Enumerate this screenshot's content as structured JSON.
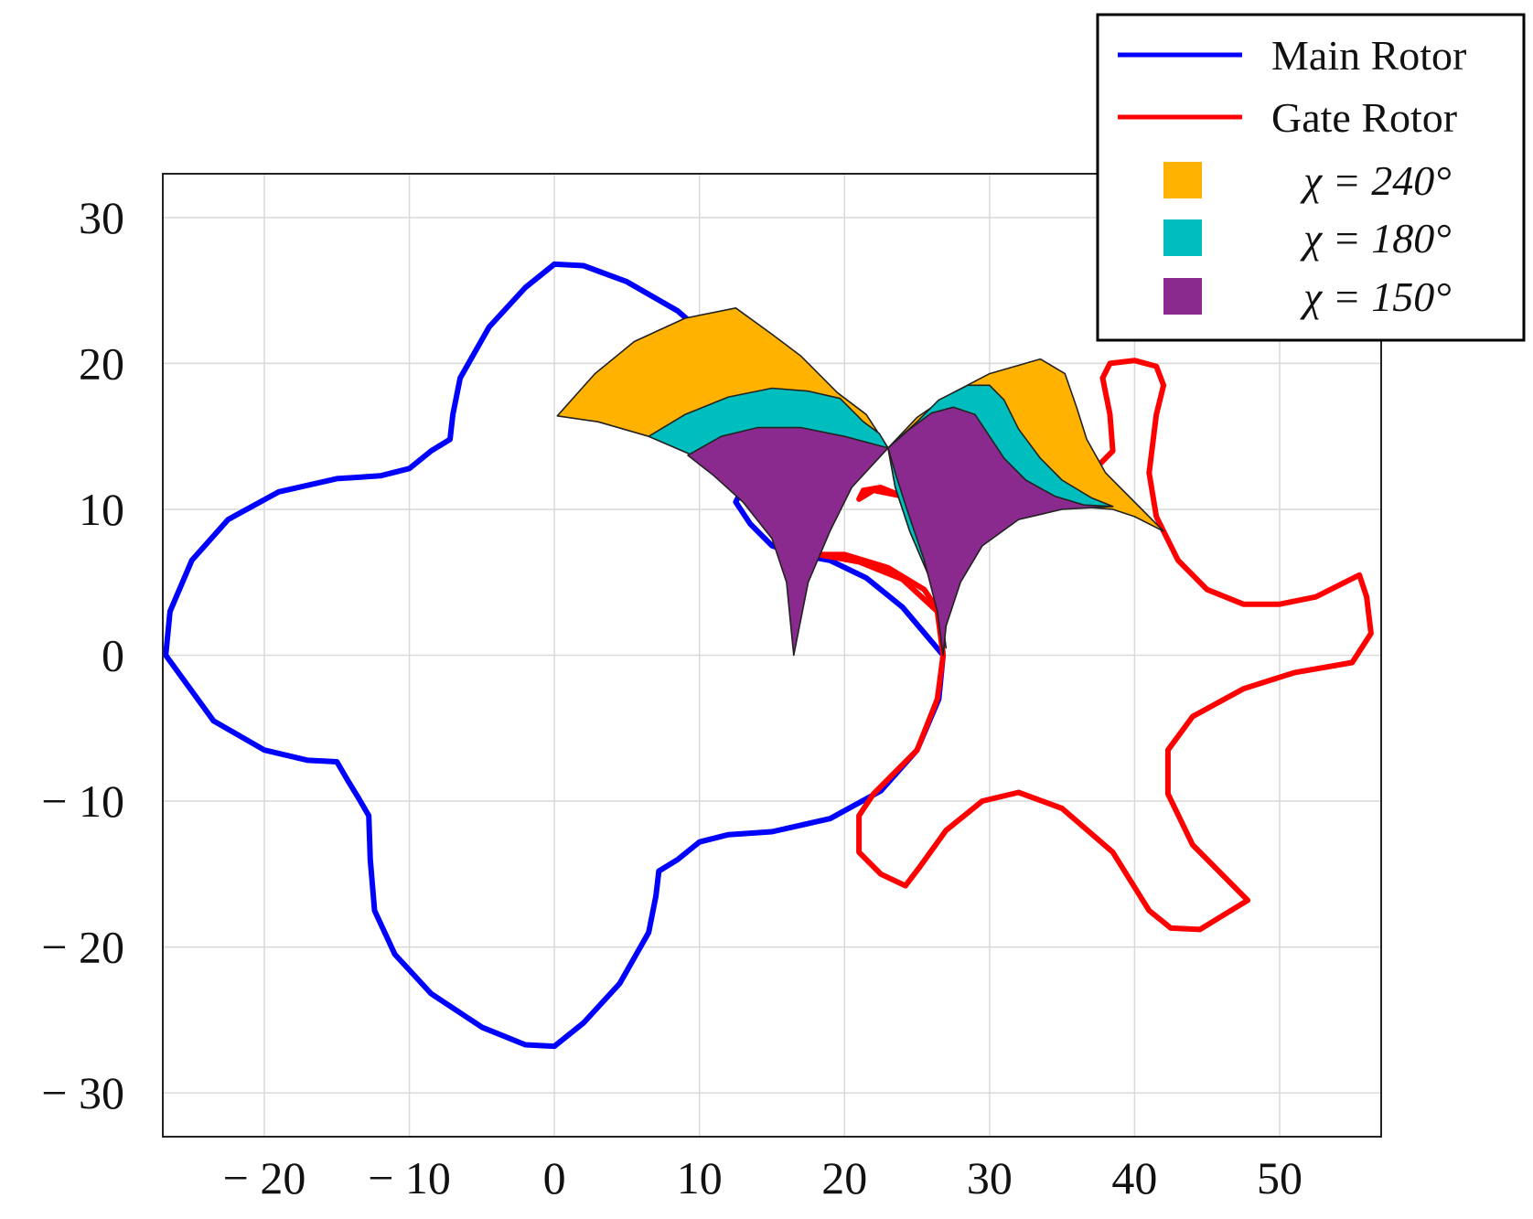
{
  "chart_data": {
    "type": "line",
    "title": "",
    "xlabel": "",
    "ylabel": "",
    "xlim": [
      -27,
      57
    ],
    "ylim": [
      -33,
      33
    ],
    "grid": true,
    "legend_position": "top-right",
    "x_ticks": [
      -20,
      -10,
      0,
      10,
      20,
      30,
      40,
      50
    ],
    "y_ticks": [
      -30,
      -20,
      -10,
      0,
      10,
      20,
      30
    ],
    "x_tick_labels": [
      "− 20",
      "− 10",
      "0",
      "10",
      "20",
      "30",
      "40",
      "50"
    ],
    "y_tick_labels": [
      "− 30",
      "− 20",
      "− 10",
      "0",
      "10",
      "20",
      "30"
    ],
    "series": [
      {
        "name": "Main Rotor",
        "color": "#0000ff",
        "points": [
          [
            -26.8,
            0
          ],
          [
            -26.5,
            3
          ],
          [
            -25,
            6.5
          ],
          [
            -22.5,
            9.3
          ],
          [
            -19,
            11.2
          ],
          [
            -15,
            12.1
          ],
          [
            -12,
            12.3
          ],
          [
            -10,
            12.8
          ],
          [
            -8.5,
            14
          ],
          [
            -7.2,
            14.8
          ],
          [
            -7,
            16.5
          ],
          [
            -6.5,
            19
          ],
          [
            -4.5,
            22.5
          ],
          [
            -2,
            25.2
          ],
          [
            0,
            26.8
          ],
          [
            2,
            26.7
          ],
          [
            5,
            25.6
          ],
          [
            8.5,
            23.6
          ],
          [
            11.5,
            21
          ],
          [
            13.5,
            17.5
          ],
          [
            14,
            15
          ],
          [
            13.5,
            12.5
          ],
          [
            12.5,
            10.5
          ],
          [
            13.5,
            9
          ],
          [
            15,
            7.5
          ],
          [
            16.8,
            6.9
          ],
          [
            19,
            6.5
          ],
          [
            21.5,
            5.3
          ],
          [
            24,
            3.3
          ],
          [
            26.8,
            0
          ],
          [
            26.5,
            -3
          ],
          [
            25,
            -6.5
          ],
          [
            22.5,
            -9.3
          ],
          [
            19,
            -11.2
          ],
          [
            15,
            -12.1
          ],
          [
            12,
            -12.3
          ],
          [
            10,
            -12.8
          ],
          [
            8.5,
            -14
          ],
          [
            7.2,
            -14.8
          ],
          [
            7,
            -16.5
          ],
          [
            6.5,
            -19
          ],
          [
            4.5,
            -22.5
          ],
          [
            2,
            -25.2
          ],
          [
            0,
            -26.8
          ],
          [
            -2,
            -26.7
          ],
          [
            -5,
            -25.5
          ],
          [
            -8.5,
            -23.2
          ],
          [
            -11,
            -20.5
          ],
          [
            -12.4,
            -17.5
          ],
          [
            -12.7,
            -14
          ],
          [
            -12.8,
            -11
          ],
          [
            -13.5,
            -9.8
          ],
          [
            -14.3,
            -8.5
          ],
          [
            -15,
            -7.3
          ],
          [
            -17,
            -7.2
          ],
          [
            -20,
            -6.5
          ],
          [
            -23.5,
            -4.5
          ],
          [
            -26.8,
            0
          ]
        ]
      },
      {
        "name": "Gate Rotor",
        "color": "#ff0000",
        "points": [
          [
            26.8,
            0
          ],
          [
            26.5,
            3
          ],
          [
            25.5,
            4.5
          ],
          [
            23,
            6
          ],
          [
            20,
            6.9
          ],
          [
            18.2,
            6.9
          ],
          [
            21,
            6.4
          ],
          [
            24,
            5.2
          ],
          [
            26.4,
            3
          ],
          [
            26.8,
            0
          ],
          [
            26.4,
            -3
          ],
          [
            25,
            -6.5
          ],
          [
            22,
            -9.5
          ],
          [
            21,
            -11
          ],
          [
            21,
            -13.5
          ],
          [
            22.5,
            -15
          ],
          [
            24.2,
            -15.8
          ],
          [
            25.2,
            -14.5
          ],
          [
            27,
            -12
          ],
          [
            29.5,
            -10
          ],
          [
            32,
            -9.4
          ],
          [
            35,
            -10.5
          ],
          [
            38.5,
            -13.5
          ],
          [
            41,
            -17.5
          ],
          [
            42.5,
            -18.7
          ],
          [
            44.5,
            -18.8
          ],
          [
            47.8,
            -16.8
          ],
          [
            46.5,
            -15.5
          ],
          [
            44,
            -13
          ],
          [
            42.3,
            -9.5
          ],
          [
            42.3,
            -6.5
          ],
          [
            44,
            -4.2
          ],
          [
            47.5,
            -2.3
          ],
          [
            51,
            -1.2
          ],
          [
            55,
            -0.5
          ],
          [
            56.3,
            1.5
          ],
          [
            56,
            4
          ],
          [
            55.5,
            5.5
          ],
          [
            54.5,
            5
          ],
          [
            52.5,
            4
          ],
          [
            50,
            3.5
          ],
          [
            47.5,
            3.5
          ],
          [
            45,
            4.5
          ],
          [
            43,
            6.5
          ],
          [
            41.5,
            9.5
          ],
          [
            41,
            12.5
          ],
          [
            41.5,
            16.5
          ],
          [
            42,
            18.5
          ],
          [
            41.5,
            19.8
          ],
          [
            40,
            20.2
          ],
          [
            38.3,
            20
          ],
          [
            37.8,
            19
          ],
          [
            38.3,
            16.5
          ],
          [
            38.5,
            14
          ],
          [
            37.5,
            13
          ],
          [
            36,
            12.5
          ],
          [
            35,
            10.8
          ],
          [
            33,
            9.8
          ],
          [
            30,
            9.8
          ],
          [
            27.5,
            10
          ],
          [
            25,
            10.5
          ],
          [
            22.5,
            11.5
          ],
          [
            21.3,
            11.3
          ],
          [
            21,
            10.7
          ],
          [
            22,
            11.3
          ],
          [
            24.5,
            10.8
          ],
          [
            26,
            9.9
          ]
        ]
      }
    ],
    "legend": {
      "line_entries": [
        {
          "label": "Main Rotor",
          "color": "#0000ff"
        },
        {
          "label": "Gate Rotor",
          "color": "#ff0000"
        }
      ],
      "area_entries": [
        {
          "label": "χ = 240°",
          "color": "#ffb300"
        },
        {
          "label": "χ = 180°",
          "color": "#00bebe"
        },
        {
          "label": "χ = 150°",
          "color": "#8b2a8e"
        }
      ]
    },
    "regions": [
      {
        "group": "main_rotor",
        "legend": "χ = 240°",
        "color": "#ffb300",
        "points": [
          [
            0.2,
            16.4
          ],
          [
            3,
            16
          ],
          [
            6.5,
            15
          ],
          [
            10,
            13.5
          ],
          [
            13,
            12
          ],
          [
            16,
            10
          ],
          [
            18,
            8
          ],
          [
            18.5,
            10
          ],
          [
            19.5,
            12
          ],
          [
            21,
            14
          ],
          [
            23,
            14.2
          ],
          [
            21.5,
            16.5
          ],
          [
            19.5,
            18
          ],
          [
            17,
            20.5
          ],
          [
            15,
            22
          ],
          [
            12.5,
            23.8
          ],
          [
            9,
            23.1
          ],
          [
            5.5,
            21.5
          ],
          [
            2.8,
            19.3
          ],
          [
            0.2,
            16.4
          ]
        ]
      },
      {
        "group": "main_rotor",
        "legend": "χ = 180°",
        "color": "#00bebe",
        "points": [
          [
            6.5,
            15
          ],
          [
            9,
            16.5
          ],
          [
            12,
            17.7
          ],
          [
            15,
            18.3
          ],
          [
            17.5,
            18.1
          ],
          [
            19.7,
            17.6
          ],
          [
            21.3,
            16
          ],
          [
            22.4,
            15.2
          ],
          [
            23,
            14.2
          ],
          [
            21,
            13.5
          ],
          [
            19.5,
            12
          ],
          [
            18.5,
            10
          ],
          [
            18,
            8
          ],
          [
            16,
            10
          ],
          [
            13,
            12
          ],
          [
            10,
            13.5
          ],
          [
            6.5,
            15
          ]
        ]
      },
      {
        "group": "main_rotor",
        "legend": "χ = 150°",
        "color": "#8b2a8e",
        "points": [
          [
            9.2,
            13.7
          ],
          [
            11.5,
            15
          ],
          [
            14,
            15.6
          ],
          [
            17,
            15.6
          ],
          [
            20,
            15
          ],
          [
            23,
            14.2
          ],
          [
            20.5,
            11.5
          ],
          [
            19,
            8.5
          ],
          [
            17.5,
            5
          ],
          [
            16.9,
            2
          ],
          [
            16.5,
            0
          ],
          [
            16.3,
            2
          ],
          [
            16,
            5
          ],
          [
            15,
            8
          ],
          [
            13,
            10.5
          ],
          [
            11,
            12.3
          ],
          [
            9.2,
            13.7
          ]
        ]
      },
      {
        "group": "gate_rotor",
        "legend": "χ = 240°",
        "color": "#ffb300",
        "points": [
          [
            23,
            14.2
          ],
          [
            25,
            16.3
          ],
          [
            27.5,
            18
          ],
          [
            30,
            19.3
          ],
          [
            33.5,
            20.3
          ],
          [
            35.2,
            19.3
          ],
          [
            36,
            17
          ],
          [
            36.7,
            14.8
          ],
          [
            38,
            12.5
          ],
          [
            40,
            10.5
          ],
          [
            42,
            8.5
          ],
          [
            40,
            9.5
          ],
          [
            38.5,
            10
          ],
          [
            36,
            10.2
          ],
          [
            33,
            10
          ],
          [
            30,
            9
          ],
          [
            28,
            7
          ],
          [
            27.5,
            4.5
          ],
          [
            26.8,
            1.5
          ],
          [
            27,
            0.5
          ],
          [
            26.8,
            2
          ],
          [
            26,
            5
          ],
          [
            24.5,
            8.5
          ],
          [
            23.5,
            11.5
          ],
          [
            23,
            14.2
          ]
        ]
      },
      {
        "group": "gate_rotor",
        "legend": "χ = 180°",
        "color": "#00bebe",
        "points": [
          [
            23,
            14.2
          ],
          [
            25,
            16
          ],
          [
            26.5,
            17.5
          ],
          [
            28.5,
            18.5
          ],
          [
            30,
            18.5
          ],
          [
            31,
            17.5
          ],
          [
            32,
            15.5
          ],
          [
            33.5,
            13.5
          ],
          [
            35,
            12
          ],
          [
            37,
            10.8
          ],
          [
            38.5,
            10.2
          ],
          [
            36,
            10.2
          ],
          [
            33,
            10
          ],
          [
            30,
            9
          ],
          [
            28,
            7
          ],
          [
            27.5,
            4.5
          ],
          [
            26.8,
            1.5
          ],
          [
            26,
            5
          ],
          [
            24.5,
            8.5
          ],
          [
            23.5,
            11.5
          ],
          [
            23,
            14.2
          ]
        ]
      },
      {
        "group": "gate_rotor",
        "legend": "χ = 150°",
        "color": "#8b2a8e",
        "points": [
          [
            23,
            14.2
          ],
          [
            24.5,
            15.5
          ],
          [
            26,
            16.6
          ],
          [
            27.5,
            17
          ],
          [
            29,
            16.5
          ],
          [
            30,
            15
          ],
          [
            31,
            13.5
          ],
          [
            32.5,
            12
          ],
          [
            34.5,
            10.9
          ],
          [
            36.5,
            10.3
          ],
          [
            38.5,
            10.2
          ],
          [
            35,
            10
          ],
          [
            32,
            9.3
          ],
          [
            29.5,
            7.5
          ],
          [
            28,
            5
          ],
          [
            27,
            2
          ],
          [
            26.8,
            0
          ],
          [
            26.4,
            3
          ],
          [
            25.5,
            6.5
          ],
          [
            24.3,
            10
          ],
          [
            23.5,
            12.5
          ],
          [
            23,
            14.2
          ]
        ]
      }
    ]
  }
}
